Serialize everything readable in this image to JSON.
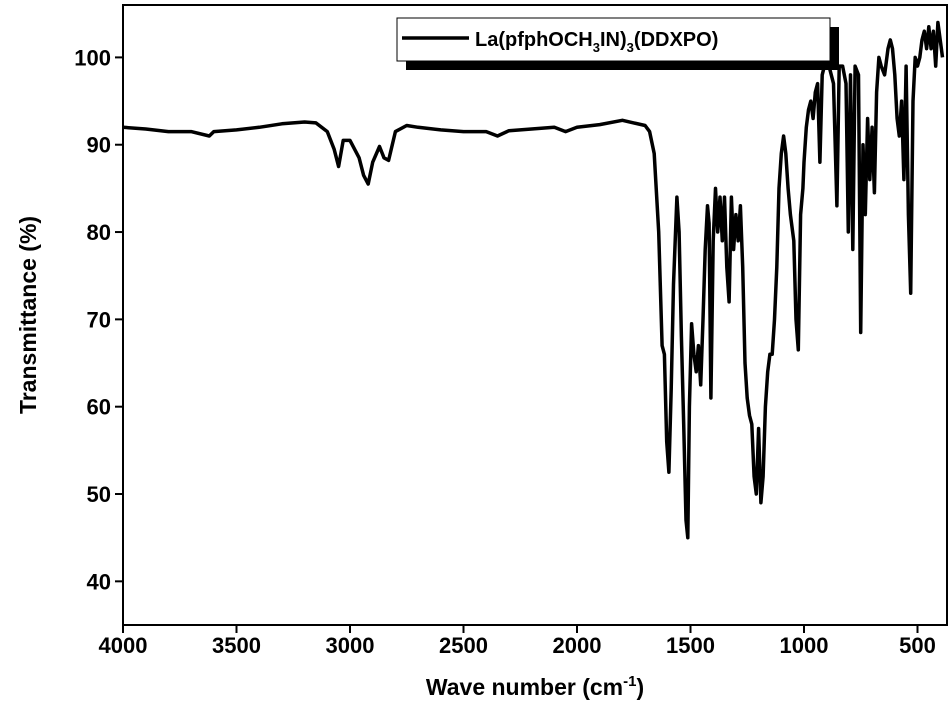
{
  "chart_data": {
    "type": "line",
    "x_label": "Wave number (cm-1)",
    "y_label": "Transmittance (%)",
    "xlim": [
      4000,
      370
    ],
    "ylim": [
      35,
      106
    ],
    "xticks": [
      4000,
      3500,
      3000,
      2500,
      2000,
      1500,
      1000,
      500
    ],
    "yticks": [
      40,
      50,
      60,
      70,
      80,
      90,
      100
    ],
    "x_reversed": true,
    "legend": "top-right",
    "x": [
      4000,
      3900,
      3800,
      3700,
      3620,
      3600,
      3500,
      3400,
      3300,
      3200,
      3150,
      3100,
      3070,
      3050,
      3030,
      3000,
      2960,
      2940,
      2920,
      2900,
      2870,
      2850,
      2830,
      2800,
      2750,
      2700,
      2600,
      2500,
      2400,
      2350,
      2300,
      2200,
      2100,
      2050,
      2000,
      1900,
      1800,
      1750,
      1700,
      1680,
      1660,
      1640,
      1625,
      1615,
      1605,
      1595,
      1585,
      1575,
      1560,
      1550,
      1540,
      1530,
      1520,
      1512,
      1505,
      1495,
      1485,
      1475,
      1465,
      1455,
      1445,
      1435,
      1425,
      1418,
      1410,
      1400,
      1390,
      1380,
      1370,
      1360,
      1350,
      1340,
      1330,
      1320,
      1310,
      1300,
      1290,
      1280,
      1270,
      1260,
      1250,
      1240,
      1230,
      1220,
      1210,
      1200,
      1190,
      1180,
      1170,
      1160,
      1150,
      1140,
      1130,
      1120,
      1110,
      1100,
      1090,
      1080,
      1070,
      1060,
      1045,
      1035,
      1025,
      1015,
      1005,
      1000,
      990,
      980,
      970,
      960,
      950,
      940,
      930,
      920,
      910,
      890,
      870,
      855,
      845,
      830,
      815,
      805,
      795,
      785,
      775,
      760,
      750,
      740,
      730,
      720,
      710,
      700,
      690,
      680,
      670,
      660,
      645,
      630,
      620,
      610,
      600,
      590,
      580,
      570,
      560,
      550,
      540,
      530,
      520,
      510,
      500,
      490,
      480,
      470,
      460,
      450,
      440,
      430,
      420,
      410,
      400,
      390
    ],
    "series": [
      {
        "name": "La(pfphOCH3IN)3(DDXPO)",
        "color": "#000000",
        "values": [
          92,
          91.8,
          91.5,
          91.5,
          91,
          91.5,
          91.7,
          92,
          92.4,
          92.6,
          92.5,
          91.5,
          89.5,
          87.5,
          90.5,
          90.5,
          88.5,
          86.5,
          85.5,
          88,
          89.8,
          88.5,
          88.2,
          91.5,
          92.2,
          92,
          91.7,
          91.5,
          91.5,
          91,
          91.6,
          91.8,
          92,
          91.5,
          92,
          92.3,
          92.8,
          92.5,
          92.2,
          91.5,
          89,
          80,
          67,
          66,
          56,
          52.5,
          62,
          74,
          84,
          80,
          68,
          58,
          47,
          45,
          60,
          69.5,
          66,
          64,
          67,
          62.5,
          70,
          78,
          83,
          81,
          61,
          79,
          85,
          80,
          84,
          79,
          84,
          76,
          72,
          84,
          78,
          82,
          79,
          83,
          76,
          65,
          61,
          59,
          58,
          52,
          50,
          57.5,
          49,
          52,
          60,
          64,
          66,
          66,
          70,
          76,
          85,
          89,
          91,
          89,
          85,
          82,
          79,
          70,
          66.5,
          82,
          85,
          88,
          92,
          94,
          95,
          93,
          96,
          97,
          88,
          98,
          99,
          99,
          97,
          83,
          99,
          99,
          97,
          80,
          98,
          78,
          99,
          98,
          68.5,
          90,
          82,
          93,
          86,
          92,
          84.5,
          96,
          100,
          99,
          98,
          101,
          102,
          101,
          98,
          93,
          91,
          95,
          86,
          99,
          82,
          73,
          95,
          100,
          99,
          100,
          102,
          103,
          101,
          103.5,
          101,
          103,
          99,
          104,
          102,
          100
        ]
      }
    ]
  }
}
